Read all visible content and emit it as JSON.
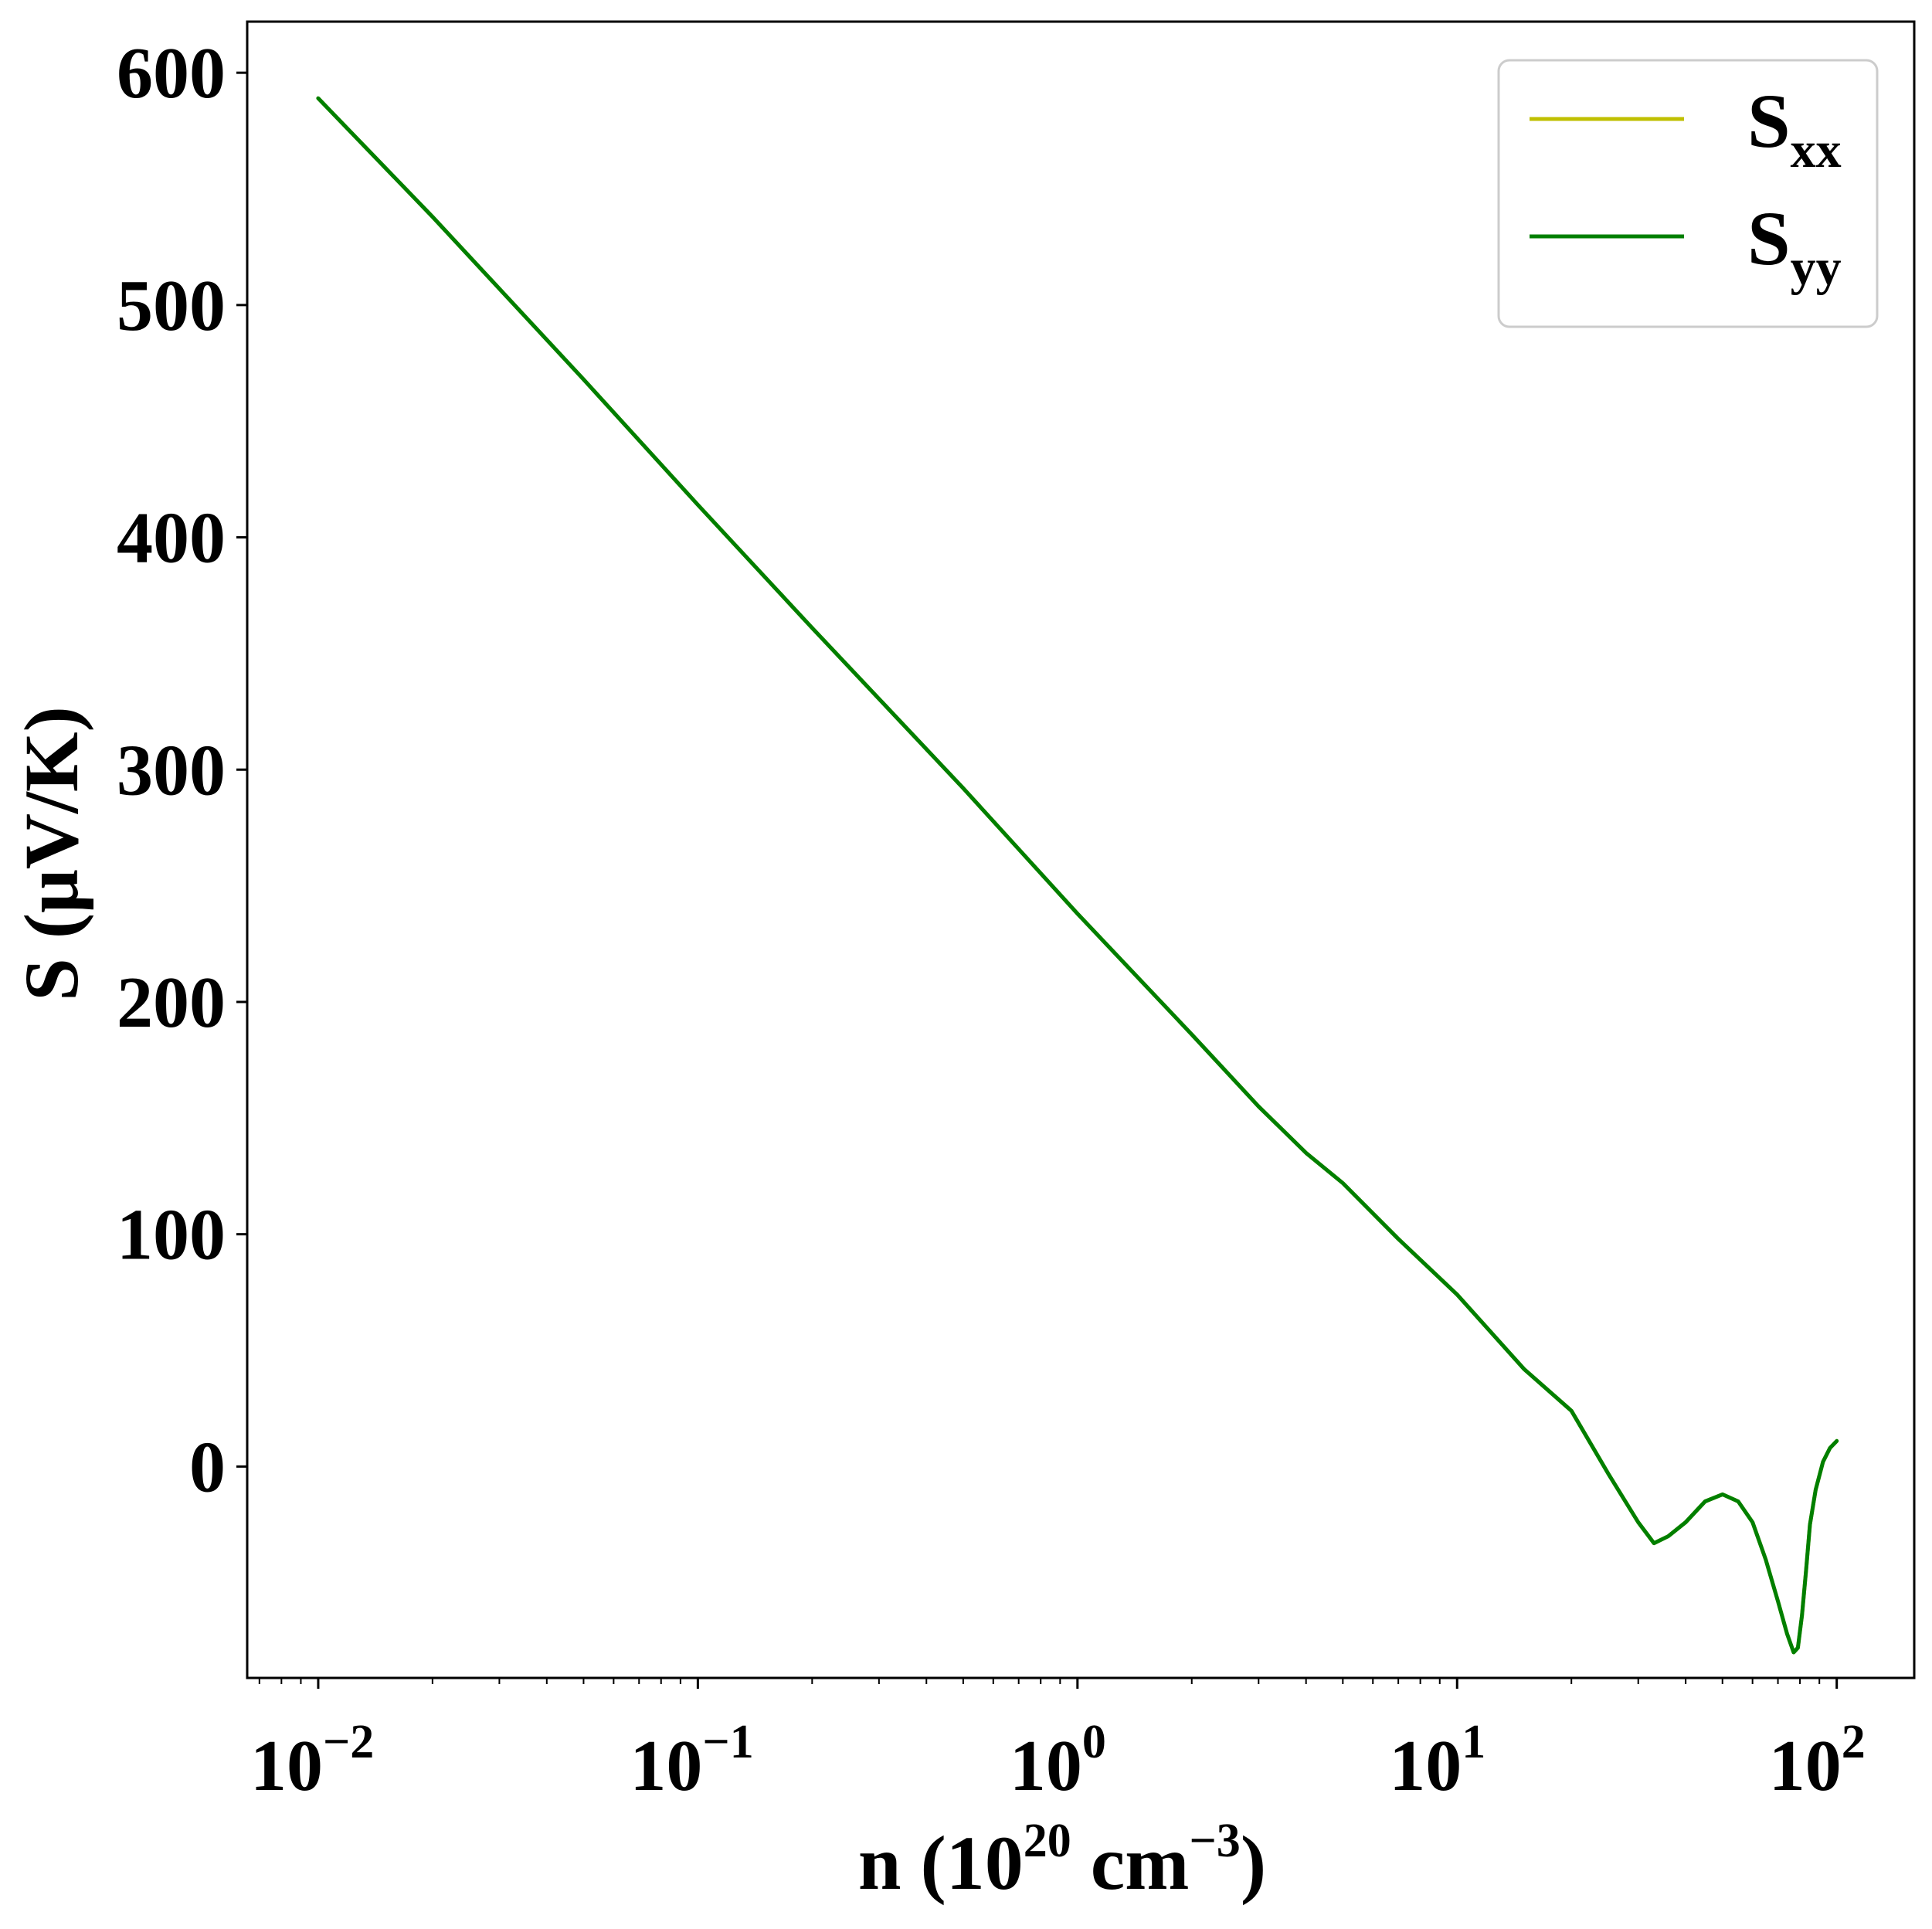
{
  "chart_data": {
    "type": "line",
    "xlabel": {
      "base": "n (10",
      "exp1": "20",
      "mid": " cm",
      "exp2": "−3",
      "end": ")"
    },
    "ylabel": "S (μV/K)",
    "xscale": "log",
    "xlim": [
      0.0065,
      160
    ],
    "ylim": [
      -91,
      622
    ],
    "grid": false,
    "legend_position": "upper right",
    "yticks": [
      0,
      100,
      200,
      300,
      400,
      500,
      600
    ],
    "ytick_labels": [
      "0",
      "100",
      "200",
      "300",
      "400",
      "500",
      "600"
    ],
    "xticks": [
      0.01,
      0.1,
      1,
      10,
      100
    ],
    "xtick_labels": [
      {
        "base": "10",
        "exp": "−2"
      },
      {
        "base": "10",
        "exp": "−1"
      },
      {
        "base": "10",
        "exp": "0"
      },
      {
        "base": "10",
        "exp": "1"
      },
      {
        "base": "10",
        "exp": "2"
      }
    ],
    "series": [
      {
        "name": {
          "base": "S",
          "sub": "xx"
        },
        "color": "#bfbf00",
        "x": [
          0.01,
          0.02,
          0.05,
          0.1,
          0.2,
          0.5,
          1,
          2,
          3,
          4,
          5,
          7,
          10,
          15,
          20,
          25,
          30,
          33,
          36,
          40,
          45,
          50,
          55,
          60,
          65,
          70,
          74,
          77,
          79,
          81,
          83,
          85,
          88,
          92,
          96,
          100
        ],
        "y": [
          589,
          538,
          468,
          414,
          361,
          292,
          238,
          186,
          155,
          135,
          122,
          98,
          74,
          42,
          24,
          -3,
          -24,
          -33,
          -30,
          -24,
          -15,
          -12,
          -15,
          -24,
          -40,
          -58,
          -72,
          -80,
          -78,
          -64,
          -45,
          -25,
          -10,
          2,
          8,
          11
        ]
      },
      {
        "name": {
          "base": "S",
          "sub": "yy"
        },
        "color": "#007f00",
        "x": [
          0.01,
          0.02,
          0.05,
          0.1,
          0.2,
          0.5,
          1,
          2,
          3,
          4,
          5,
          7,
          10,
          15,
          20,
          25,
          30,
          33,
          36,
          40,
          45,
          50,
          55,
          60,
          65,
          70,
          74,
          77,
          79,
          81,
          83,
          85,
          88,
          92,
          96,
          100
        ],
        "y": [
          589,
          538,
          468,
          414,
          361,
          292,
          238,
          186,
          155,
          135,
          122,
          98,
          74,
          42,
          24,
          -3,
          -24,
          -33,
          -30,
          -24,
          -15,
          -12,
          -15,
          -24,
          -40,
          -58,
          -72,
          -80,
          -78,
          -64,
          -45,
          -25,
          -10,
          2,
          8,
          11
        ]
      }
    ]
  }
}
